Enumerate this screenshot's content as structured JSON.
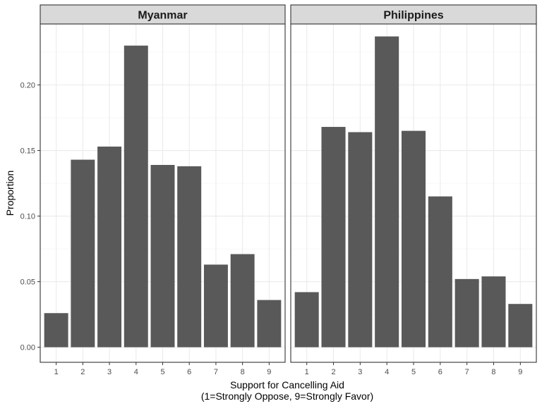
{
  "chart_data": {
    "type": "bar",
    "xlabel_line1": "Support for Cancelling Aid",
    "xlabel_line2": "(1=Strongly Oppose, 9=Strongly Favor)",
    "ylabel": "Proportion",
    "ylim": [
      -0.0115,
      0.2465
    ],
    "yticks": [
      0.0,
      0.05,
      0.1,
      0.15,
      0.2
    ],
    "ytick_labels": [
      "0.00",
      "0.05",
      "0.10",
      "0.15",
      "0.20"
    ],
    "categories": [
      "1",
      "2",
      "3",
      "4",
      "5",
      "6",
      "7",
      "8",
      "9"
    ],
    "bar_color": "#595959",
    "grid": true,
    "panels": [
      {
        "title": "Myanmar",
        "values": [
          0.026,
          0.143,
          0.153,
          0.23,
          0.139,
          0.138,
          0.063,
          0.071,
          0.036
        ]
      },
      {
        "title": "Philippines",
        "values": [
          0.042,
          0.168,
          0.164,
          0.237,
          0.165,
          0.115,
          0.052,
          0.054,
          0.033
        ]
      }
    ]
  }
}
